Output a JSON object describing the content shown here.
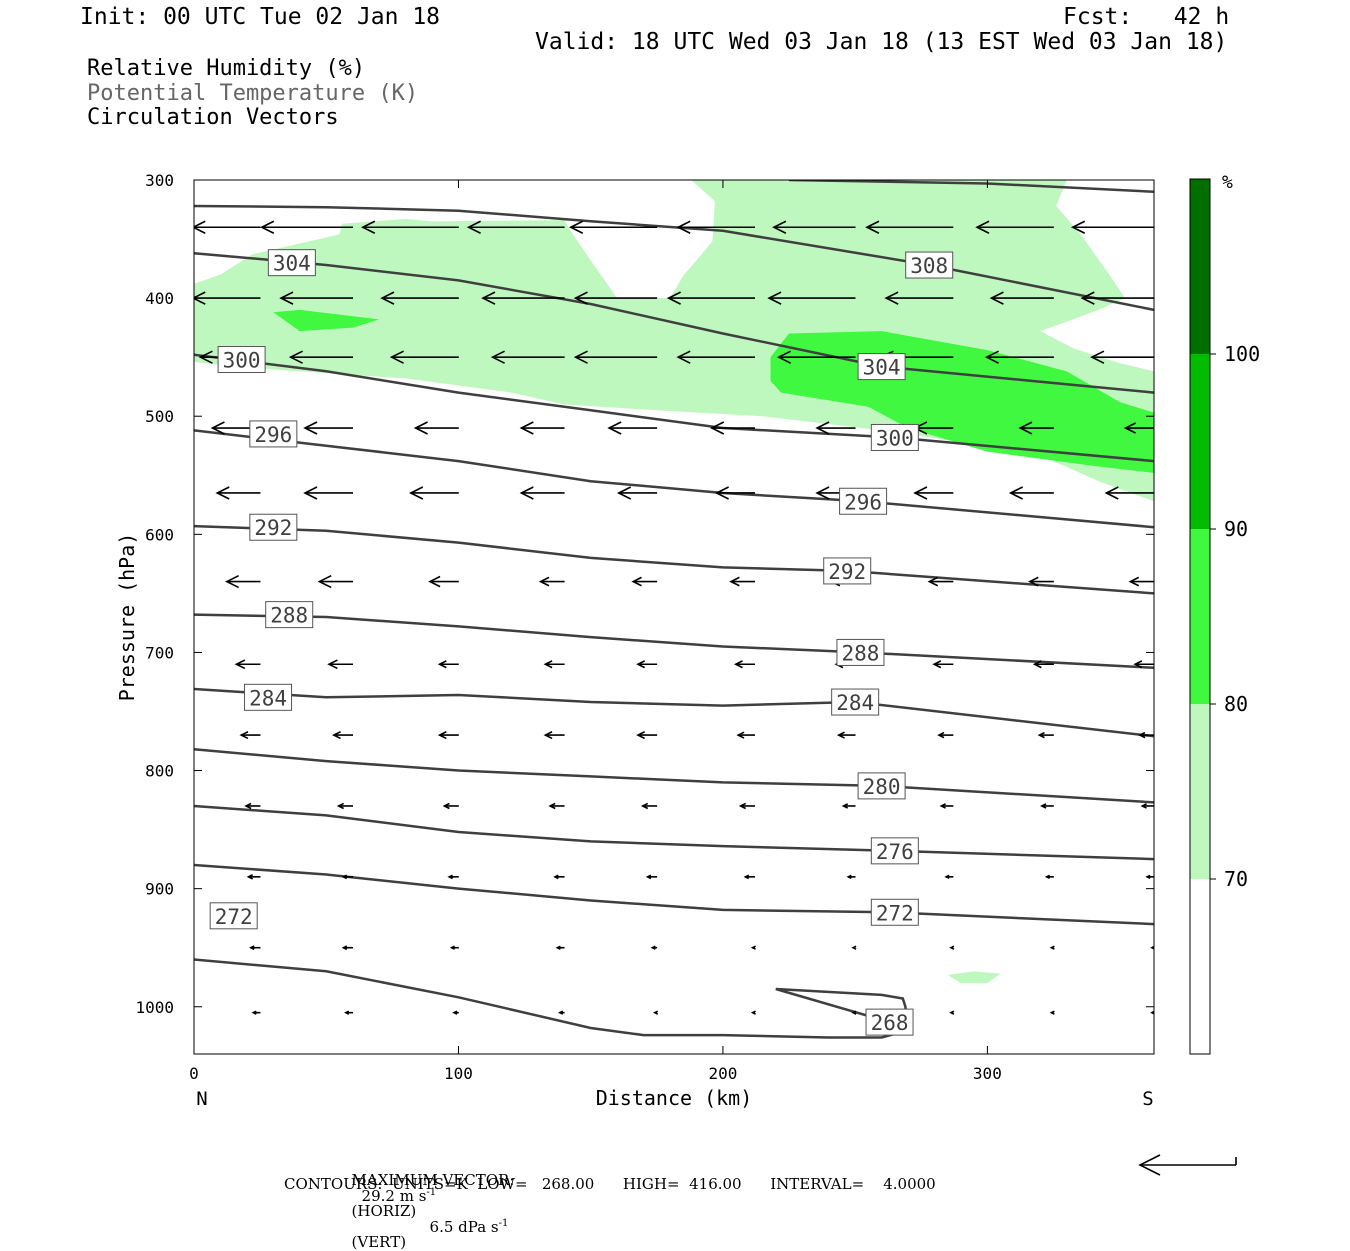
{
  "header": {
    "init": "Init: 00 UTC Tue 02 Jan 18",
    "fcst": "Fcst:   42 h",
    "valid": "Valid: 18 UTC Wed 03 Jan 18 (13 EST Wed 03 Jan 18)"
  },
  "legend_text": {
    "rh": "Relative Humidity (%)",
    "theta": "Potential Temperature (K)",
    "vectors": "Circulation Vectors"
  },
  "footer": {
    "max_vector_label": "MAXIMUM VECTOR:",
    "max_horiz_value": "29.2 m s",
    "max_horiz_sup": "-1",
    "max_horiz_unit": "(HORIZ)",
    "max_vert_value": "6.5 dPa s",
    "max_vert_sup": "-1",
    "max_vert_unit": "(VERT)",
    "contours": "CONTOURS:  UNITS=K  LOW=   268.00      HIGH=  416.00      INTERVAL=    4.0000"
  },
  "colors": {
    "rh_70_80": "#bff8bf",
    "rh_80_90": "#3ff83f",
    "rh_90_100": "#00bb00",
    "rh_100": "#006f00",
    "contour": "#3f3f3f"
  },
  "chart_data": {
    "type": "cross-section",
    "xlabel": "Distance (km)",
    "ylabel": "Pressure (hPa)",
    "xlim": [
      0,
      363
    ],
    "ylim": [
      300,
      1040
    ],
    "y_inverted": true,
    "x_ticks": [
      "0",
      "100",
      "200",
      "300"
    ],
    "x_tick_values": [
      0,
      100,
      200,
      300
    ],
    "y_ticks": [
      "300",
      "400",
      "500",
      "600",
      "700",
      "800",
      "900",
      "1000"
    ],
    "y_tick_values": [
      300,
      400,
      500,
      600,
      700,
      800,
      900,
      1000
    ],
    "x_end_labels": {
      "left": "N",
      "right": "S"
    },
    "colorbar": {
      "unit": "%",
      "levels": [
        70,
        80,
        90,
        100
      ],
      "tick_labels": [
        "70",
        "80",
        "90",
        "100"
      ]
    },
    "rh_fill": [
      {
        "level": 70,
        "points": [
          [
            0,
            388
          ],
          [
            10,
            380
          ],
          [
            22,
            363
          ],
          [
            55,
            346
          ],
          [
            56,
            337
          ],
          [
            80,
            333
          ],
          [
            90,
            335
          ],
          [
            140,
            334
          ],
          [
            143,
            345
          ],
          [
            150,
            368
          ],
          [
            160,
            400
          ],
          [
            180,
            400
          ],
          [
            185,
            381
          ],
          [
            190,
            368
          ],
          [
            196,
            352
          ],
          [
            197,
            318
          ],
          [
            188,
            300
          ],
          [
            330,
            300
          ],
          [
            326,
            322
          ],
          [
            335,
            345
          ],
          [
            347,
            383
          ],
          [
            352,
            400
          ],
          [
            342,
            410
          ],
          [
            330,
            420
          ],
          [
            320,
            428
          ],
          [
            333,
            443
          ],
          [
            350,
            455
          ],
          [
            363,
            462
          ],
          [
            363,
            572
          ],
          [
            342,
            555
          ],
          [
            320,
            533
          ],
          [
            300,
            525
          ],
          [
            260,
            512
          ],
          [
            215,
            500
          ],
          [
            175,
            495
          ],
          [
            140,
            490
          ],
          [
            120,
            480
          ],
          [
            80,
            468
          ],
          [
            40,
            462
          ],
          [
            15,
            458
          ],
          [
            0,
            454
          ]
        ]
      },
      {
        "level": 80,
        "points": [
          [
            30,
            412
          ],
          [
            40,
            410
          ],
          [
            70,
            418
          ],
          [
            60,
            425
          ],
          [
            40,
            428
          ],
          [
            35,
            420
          ]
        ]
      },
      {
        "level": 80,
        "points": [
          [
            218,
            450
          ],
          [
            225,
            430
          ],
          [
            260,
            428
          ],
          [
            300,
            444
          ],
          [
            330,
            462
          ],
          [
            350,
            488
          ],
          [
            363,
            497
          ],
          [
            363,
            548
          ],
          [
            340,
            542
          ],
          [
            300,
            530
          ],
          [
            270,
            510
          ],
          [
            255,
            492
          ],
          [
            222,
            480
          ],
          [
            218,
            470
          ]
        ]
      },
      {
        "level": 70,
        "points": [
          [
            285,
            973
          ],
          [
            295,
            970
          ],
          [
            305,
            972
          ],
          [
            300,
            980
          ],
          [
            290,
            980
          ]
        ]
      }
    ],
    "theta_contours": [
      {
        "label": "268",
        "label_at": [
          263,
          1013
        ],
        "points": [
          [
            0,
            960
          ],
          [
            50,
            970
          ],
          [
            100,
            992
          ],
          [
            150,
            1018
          ],
          [
            170,
            1024
          ],
          [
            200,
            1024
          ],
          [
            240,
            1026
          ],
          [
            260,
            1026
          ],
          [
            270,
            1020
          ],
          [
            269,
            1000
          ],
          [
            268,
            993
          ],
          [
            260,
            990
          ],
          [
            220,
            985
          ],
          [
            263,
            1013
          ]
        ]
      },
      {
        "label": "272",
        "label_at": [
          15,
          923
        ],
        "label2": "272",
        "label2_at": [
          265,
          920
        ],
        "points": [
          [
            0,
            880
          ],
          [
            50,
            888
          ],
          [
            100,
            900
          ],
          [
            150,
            910
          ],
          [
            200,
            918
          ],
          [
            263,
            920
          ],
          [
            363,
            930
          ]
        ]
      },
      {
        "label": "276",
        "label_at": [
          265,
          868
        ],
        "points": [
          [
            0,
            830
          ],
          [
            50,
            838
          ],
          [
            100,
            852
          ],
          [
            150,
            860
          ],
          [
            200,
            864
          ],
          [
            265,
            868
          ],
          [
            363,
            875
          ]
        ]
      },
      {
        "label": "280",
        "label_at": [
          260,
          813
        ],
        "points": [
          [
            0,
            782
          ],
          [
            50,
            792
          ],
          [
            100,
            800
          ],
          [
            150,
            805
          ],
          [
            200,
            810
          ],
          [
            260,
            813
          ],
          [
            363,
            827
          ]
        ]
      },
      {
        "label": "284",
        "label_at": [
          28,
          738
        ],
        "label2": "284",
        "label2_at": [
          250,
          742
        ],
        "points": [
          [
            0,
            731
          ],
          [
            50,
            738
          ],
          [
            100,
            736
          ],
          [
            150,
            742
          ],
          [
            200,
            745
          ],
          [
            250,
            742
          ],
          [
            363,
            771
          ]
        ]
      },
      {
        "label": "288",
        "label_at": [
          36,
          668
        ],
        "label2": "288",
        "label2_at": [
          252,
          700
        ],
        "points": [
          [
            0,
            668
          ],
          [
            50,
            670
          ],
          [
            100,
            678
          ],
          [
            150,
            687
          ],
          [
            200,
            695
          ],
          [
            252,
            700
          ],
          [
            363,
            713
          ]
        ]
      },
      {
        "label": "292",
        "label_at": [
          30,
          594
        ],
        "label2": "292",
        "label2_at": [
          247,
          631
        ],
        "points": [
          [
            0,
            593
          ],
          [
            50,
            597
          ],
          [
            100,
            607
          ],
          [
            150,
            620
          ],
          [
            200,
            628
          ],
          [
            247,
            631
          ],
          [
            363,
            650
          ]
        ]
      },
      {
        "label": "296",
        "label_at": [
          30,
          515
        ],
        "label2": "296",
        "label2_at": [
          253,
          572
        ],
        "points": [
          [
            0,
            512
          ],
          [
            50,
            525
          ],
          [
            100,
            538
          ],
          [
            150,
            555
          ],
          [
            200,
            565
          ],
          [
            253,
            572
          ],
          [
            363,
            594
          ]
        ]
      },
      {
        "label": "300",
        "label_at": [
          18,
          452
        ],
        "label2": "300",
        "label2_at": [
          265,
          518
        ],
        "points": [
          [
            0,
            448
          ],
          [
            50,
            462
          ],
          [
            100,
            480
          ],
          [
            150,
            495
          ],
          [
            200,
            510
          ],
          [
            265,
            518
          ],
          [
            363,
            538
          ]
        ]
      },
      {
        "label": "304",
        "label_at": [
          37,
          370
        ],
        "label2": "304",
        "label2_at": [
          260,
          458
        ],
        "points": [
          [
            0,
            362
          ],
          [
            50,
            372
          ],
          [
            100,
            385
          ],
          [
            150,
            405
          ],
          [
            200,
            430
          ],
          [
            260,
            458
          ],
          [
            363,
            480
          ]
        ]
      },
      {
        "label": "308",
        "label_at": [
          278,
          372
        ],
        "points": [
          [
            0,
            322
          ],
          [
            50,
            323
          ],
          [
            100,
            326
          ],
          [
            150,
            335
          ],
          [
            200,
            343
          ],
          [
            278,
            372
          ],
          [
            363,
            410
          ]
        ]
      },
      {
        "label": "",
        "points": [
          [
            225,
            300
          ],
          [
            300,
            303
          ],
          [
            363,
            310
          ]
        ]
      }
    ],
    "vectors": {
      "max_horiz": 29.2,
      "max_vert": 6.5,
      "units_horiz": "m s-1",
      "units_vert": "dPa s-1",
      "rows": [
        {
          "p": 340,
          "dx": [
            -28,
            -38,
            -40,
            -40,
            -36,
            -32,
            -34,
            -36,
            -32,
            -34
          ]
        },
        {
          "p": 400,
          "dx": [
            -28,
            -30,
            -32,
            -34,
            -34,
            -36,
            -36,
            -28,
            -26,
            -30
          ]
        },
        {
          "p": 450,
          "dx": [
            -25,
            -26,
            -28,
            -30,
            -34,
            -32,
            -32,
            -30,
            -28,
            -26
          ]
        },
        {
          "p": 510,
          "dx": [
            -20,
            -20,
            -18,
            -18,
            -20,
            -18,
            -16,
            -16,
            -14,
            -12
          ]
        },
        {
          "p": 565,
          "dx": [
            -18,
            -20,
            -20,
            -18,
            -16,
            -16,
            -16,
            -16,
            -18,
            -20
          ]
        },
        {
          "p": 640,
          "dx": [
            -14,
            -14,
            -12,
            -10,
            -10,
            -10,
            -10,
            -10,
            -10,
            -10
          ]
        },
        {
          "p": 710,
          "dx": [
            -10,
            -10,
            -8,
            -8,
            -8,
            -8,
            -8,
            -8,
            -8,
            -8
          ]
        },
        {
          "p": 770,
          "dx": [
            -8,
            -8,
            -8,
            -8,
            -8,
            -7,
            -7,
            -6,
            -6,
            -6
          ]
        },
        {
          "p": 830,
          "dx": [
            -6,
            -6,
            -6,
            -6,
            -6,
            -6,
            -5,
            -5,
            -5,
            -5
          ]
        },
        {
          "p": 890,
          "dx": [
            -5,
            -4,
            -4,
            -4,
            -4,
            -4,
            -3,
            -3,
            -3,
            -3
          ]
        },
        {
          "p": 950,
          "dx": [
            -4,
            -4,
            -3,
            -3,
            -2,
            -1,
            -1,
            -1,
            -1,
            -1
          ]
        },
        {
          "p": 1005,
          "dx": [
            -3,
            -3,
            -2,
            -2,
            -1,
            -1,
            -1,
            -1,
            -1,
            -1
          ]
        }
      ]
    }
  }
}
